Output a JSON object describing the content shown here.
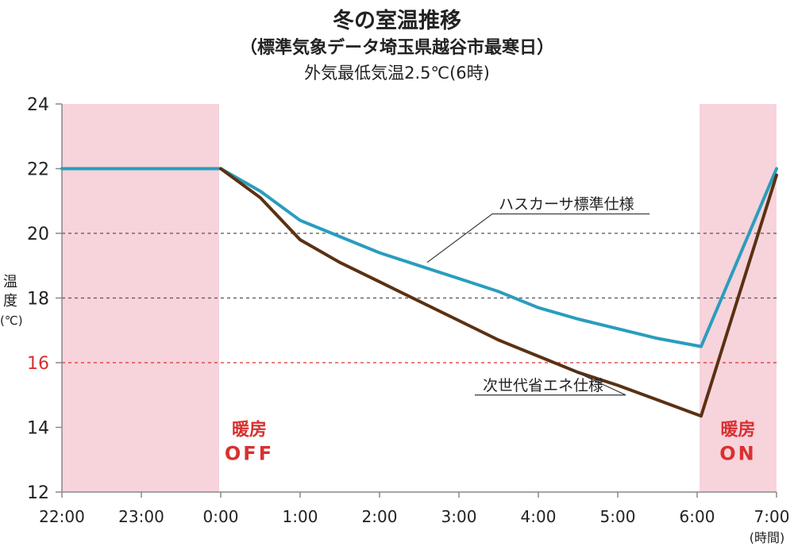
{
  "titles": {
    "main": "冬の室温推移",
    "sub": "（標準気象データ埼玉県越谷市最寒日）",
    "note": "外気最低気温2.5℃(6時)"
  },
  "colors": {
    "shade": "#f7d3dc",
    "hasuka": "#2a9dbd",
    "jisedai": "#5b3112",
    "grid": "#555555",
    "red": "#d93030",
    "axis": "#888888"
  },
  "chart_data": {
    "type": "line",
    "ylabel": [
      "温",
      "度",
      "(℃)"
    ],
    "xunit": "(時間)",
    "x_ticks": [
      "22:00",
      "23:00",
      "0:00",
      "1:00",
      "2:00",
      "3:00",
      "4:00",
      "5:00",
      "6:00",
      "7:00"
    ],
    "y_ticks": [
      12,
      14,
      16,
      18,
      20,
      22,
      24
    ],
    "highlight_ytick": 16,
    "ylim": [
      12,
      24
    ],
    "xlim": [
      0,
      9
    ],
    "dashed_lines": [
      {
        "y": 20,
        "color": "grid"
      },
      {
        "y": 18,
        "color": "grid"
      },
      {
        "y": 16,
        "color": "red"
      }
    ],
    "shaded_regions": [
      {
        "x0": 0,
        "x1": 1.98,
        "label": [
          "暖房",
          "OFF"
        ]
      },
      {
        "x0": 8.03,
        "x1": 9,
        "label": [
          "暖房",
          "ON"
        ]
      }
    ],
    "series": [
      {
        "name": "ハスカーサ標準仕様",
        "color": "hasuka",
        "points": [
          [
            0,
            22
          ],
          [
            2,
            22
          ],
          [
            2.5,
            21.3
          ],
          [
            3,
            20.4
          ],
          [
            3.5,
            19.9
          ],
          [
            4,
            19.4
          ],
          [
            4.5,
            19.0
          ],
          [
            5,
            18.6
          ],
          [
            5.5,
            18.2
          ],
          [
            6,
            17.7
          ],
          [
            6.5,
            17.35
          ],
          [
            7,
            17.05
          ],
          [
            7.5,
            16.75
          ],
          [
            8.05,
            16.5
          ],
          [
            9,
            22
          ]
        ],
        "label": {
          "text": "ハスカーサ標準仕様",
          "at": [
            5.5,
            20.6
          ],
          "leader_to": [
            4.6,
            19.1
          ]
        }
      },
      {
        "name": "次世代省エネ仕様",
        "color": "jisedai",
        "points": [
          [
            2,
            22
          ],
          [
            2.5,
            21.1
          ],
          [
            3,
            19.8
          ],
          [
            3.5,
            19.1
          ],
          [
            4,
            18.5
          ],
          [
            4.5,
            17.9
          ],
          [
            5,
            17.3
          ],
          [
            5.5,
            16.7
          ],
          [
            6,
            16.2
          ],
          [
            6.5,
            15.7
          ],
          [
            7,
            15.3
          ],
          [
            7.5,
            14.85
          ],
          [
            8.05,
            14.35
          ],
          [
            9,
            21.8
          ]
        ],
        "label": {
          "text": "次世代省エネ仕様",
          "at": [
            5.3,
            15.0
          ],
          "leader_to": [
            6.4,
            15.8
          ]
        }
      }
    ]
  }
}
